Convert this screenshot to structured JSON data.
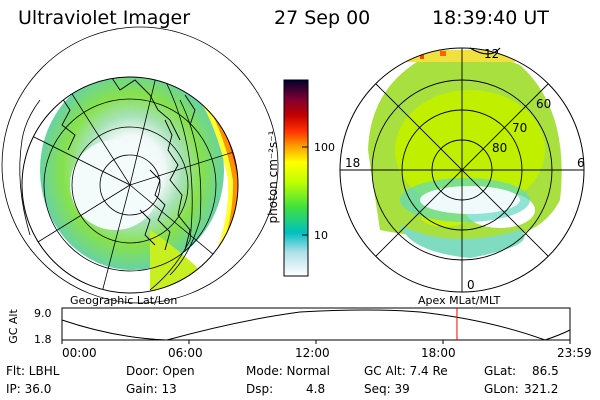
{
  "header": {
    "instrument": "Ultraviolet Imager",
    "date": "27 Sep 00",
    "time": "18:39:40 UT"
  },
  "left_map": {
    "label": "Geographic Lat/Lon"
  },
  "right_map": {
    "label": "Apex MLat/MLT",
    "mlt_labels": {
      "top": "12",
      "left": "18",
      "right": "6",
      "bottom": "0"
    },
    "lat_labels": [
      "60",
      "70",
      "80"
    ]
  },
  "colorbar": {
    "unit_label": "photon cm⁻²s⁻¹",
    "ticks": [
      "100",
      "10"
    ],
    "colors": [
      "#ffffff",
      "#00c0c0",
      "#40e040",
      "#c0ff00",
      "#ffff00",
      "#ffa000",
      "#ff3000",
      "#c00000",
      "#800030",
      "#200040",
      "#000000"
    ]
  },
  "altitude_plot": {
    "ylabel": "GC Alt",
    "yticks": [
      "9.0",
      "1.8"
    ],
    "xticks": [
      "00:00",
      "06:00",
      "12:00",
      "18:00",
      "23:59"
    ],
    "current_time_hours": 18.66,
    "marker_color": "#ff0000"
  },
  "info": {
    "flt": "Flt: LBHL",
    "ip": "IP: 36.0",
    "door": "Door: Open",
    "gain": "Gain: 13",
    "mode": "Mode: Normal",
    "dsp": "Dsp:",
    "dsp_value": "4.8",
    "gc_alt": "GC Alt: 7.4 Re",
    "seq": "Seq: 39",
    "glat": "GLat:",
    "glat_value": "86.5",
    "glon": "GLon:",
    "glon_value": "321.2"
  }
}
